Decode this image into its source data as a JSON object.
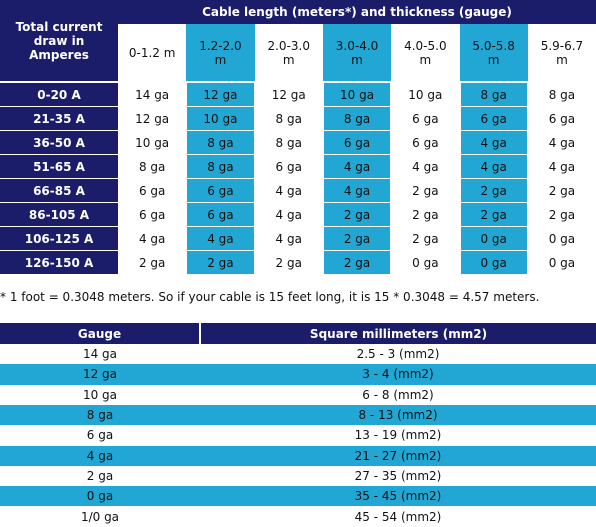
{
  "top_table": {
    "title": "Cable length (meters*) and thickness (gauge)",
    "corner": "Total current draw in Amperes",
    "columns": [
      "0-1.2 m",
      "1.2-2.0 m",
      "2.0-3.0 m",
      "3.0-4.0 m",
      "4.0-5.0 m",
      "5.0-5.8 m",
      "5.9-6.7 m"
    ],
    "rows": [
      {
        "label": "0-20 A",
        "cells": [
          "14 ga",
          "12 ga",
          "12 ga",
          "10 ga",
          "10 ga",
          "8 ga",
          "8 ga"
        ]
      },
      {
        "label": "21-35 A",
        "cells": [
          "12 ga",
          "10 ga",
          "8 ga",
          "8 ga",
          "6 ga",
          "6 ga",
          "6 ga"
        ]
      },
      {
        "label": "36-50 A",
        "cells": [
          "10 ga",
          "8 ga",
          "8 ga",
          "6 ga",
          "6 ga",
          "4 ga",
          "4 ga"
        ]
      },
      {
        "label": "51-65 A",
        "cells": [
          "8 ga",
          "8 ga",
          "6 ga",
          "4 ga",
          "4 ga",
          "4 ga",
          "4 ga"
        ]
      },
      {
        "label": "66-85 A",
        "cells": [
          "6 ga",
          "6 ga",
          "4 ga",
          "4 ga",
          "2 ga",
          "2 ga",
          "2 ga"
        ]
      },
      {
        "label": "86-105 A",
        "cells": [
          "6 ga",
          "6 ga",
          "4 ga",
          "2 ga",
          "2 ga",
          "2 ga",
          "2 ga"
        ]
      },
      {
        "label": "106-125 A",
        "cells": [
          "4 ga",
          "4 ga",
          "4 ga",
          "2 ga",
          "2 ga",
          "0 ga",
          "0 ga"
        ]
      },
      {
        "label": "126-150 A",
        "cells": [
          "2 ga",
          "2 ga",
          "2 ga",
          "2 ga",
          "0 ga",
          "0 ga",
          "0 ga"
        ]
      }
    ]
  },
  "footnote": "* 1 foot = 0.3048 meters. So if your cable is 15 feet long, it is 15 * 0.3048 = 4.57 meters.",
  "gauge_table": {
    "headers": [
      "Gauge",
      "Square millimeters (mm2)"
    ],
    "rows": [
      [
        "14 ga",
        "2.5 - 3 (mm2)"
      ],
      [
        "12 ga",
        "3 - 4 (mm2)"
      ],
      [
        "10 ga",
        "6 - 8 (mm2)"
      ],
      [
        "8 ga",
        "8 - 13 (mm2)"
      ],
      [
        "6 ga",
        "13 - 19 (mm2)"
      ],
      [
        "4 ga",
        "21 - 27 (mm2)"
      ],
      [
        "2 ga",
        "27 - 35 (mm2)"
      ],
      [
        "0 ga",
        "35 - 45 (mm2)"
      ],
      [
        "1/0 ga",
        "45 - 54 (mm2)"
      ]
    ]
  }
}
